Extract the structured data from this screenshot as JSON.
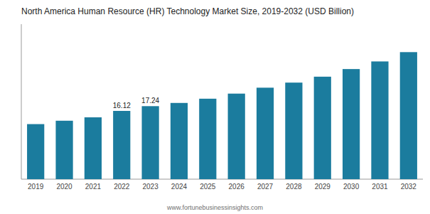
{
  "chart_data": {
    "type": "bar",
    "title": "North America Human Resource (HR) Technology Market Size, 2019-2032 (USD Billion)",
    "categories": [
      "2019",
      "2020",
      "2021",
      "2022",
      "2023",
      "2024",
      "2025",
      "2026",
      "2027",
      "2028",
      "2029",
      "2030",
      "2031",
      "2032"
    ],
    "values": [
      13.0,
      13.8,
      14.6,
      16.12,
      17.24,
      18.0,
      19.0,
      20.2,
      21.6,
      22.8,
      24.2,
      26.0,
      27.8,
      30.0
    ],
    "value_labels": [
      null,
      null,
      null,
      "16.12",
      "17.24",
      null,
      null,
      null,
      null,
      null,
      null,
      null,
      null,
      null
    ],
    "data_labels": true,
    "color": "#1b7c9e",
    "ylim": [
      0,
      36.6
    ],
    "yticks": [],
    "tick_labels": "x",
    "grid": false,
    "annotations": [
      "www.fortunebusinessinsights.com"
    ]
  }
}
